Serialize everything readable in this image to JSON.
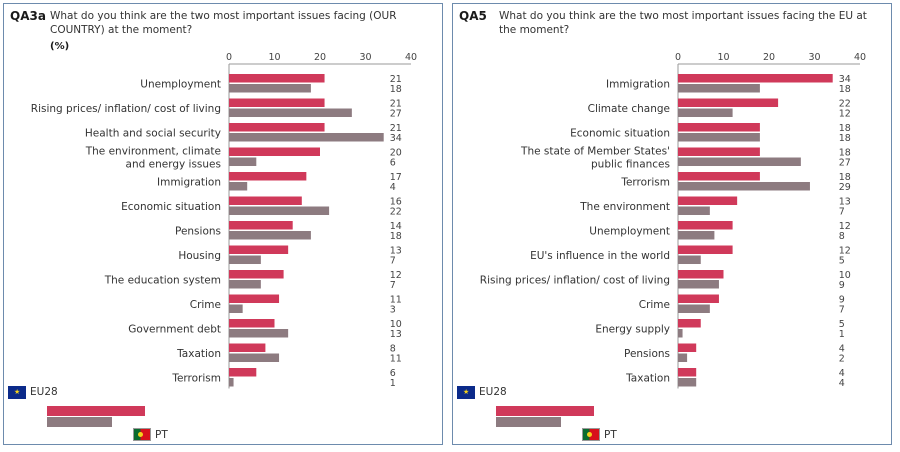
{
  "colors": {
    "eu28": "#d0395a",
    "pt": "#8d7b80",
    "axis": "#9a9a9a",
    "frame": "#6d8bad"
  },
  "legend": {
    "eu_label": "EU28",
    "pt_label": "PT",
    "eu_icon": "eu-flag-icon",
    "pt_icon": "portugal-flag-icon"
  },
  "chart_data": [
    {
      "type": "bar",
      "orientation": "horizontal",
      "code": "QA3a",
      "question": "What do you think are the two most important issues facing (OUR COUNTRY) at the moment?",
      "unit": "(%)",
      "xlim": [
        0,
        40
      ],
      "ticks": [
        "0",
        "10",
        "20",
        "30",
        "40"
      ],
      "categories": [
        [
          "Unemployment"
        ],
        [
          "Rising prices/ inflation/ cost of living"
        ],
        [
          "Health and social security"
        ],
        [
          "The environment, climate",
          "and energy issues"
        ],
        [
          "Immigration"
        ],
        [
          "Economic situation"
        ],
        [
          "Pensions"
        ],
        [
          "Housing"
        ],
        [
          "The education system"
        ],
        [
          "Crime"
        ],
        [
          "Government debt"
        ],
        [
          "Taxation"
        ],
        [
          "Terrorism"
        ]
      ],
      "series": [
        {
          "name": "EU28",
          "values": [
            21,
            21,
            21,
            20,
            17,
            16,
            14,
            13,
            12,
            11,
            10,
            8,
            6
          ]
        },
        {
          "name": "PT",
          "values": [
            18,
            27,
            34,
            6,
            4,
            22,
            18,
            7,
            7,
            3,
            13,
            11,
            1
          ]
        }
      ]
    },
    {
      "type": "bar",
      "orientation": "horizontal",
      "code": "QA5",
      "question": "What do you think are the two most important issues facing the EU at the moment?",
      "unit": "",
      "xlim": [
        0,
        40
      ],
      "ticks": [
        "0",
        "10",
        "20",
        "30",
        "40"
      ],
      "categories": [
        [
          "Immigration"
        ],
        [
          "Climate change"
        ],
        [
          "Economic situation"
        ],
        [
          "The state of Member States'",
          "public finances"
        ],
        [
          "Terrorism"
        ],
        [
          "The environment"
        ],
        [
          "Unemployment"
        ],
        [
          "EU's influence in the world"
        ],
        [
          "Rising prices/ inflation/ cost of living"
        ],
        [
          "Crime"
        ],
        [
          "Energy supply"
        ],
        [
          "Pensions"
        ],
        [
          "Taxation"
        ]
      ],
      "series": [
        {
          "name": "EU28",
          "values": [
            34,
            22,
            18,
            18,
            18,
            13,
            12,
            12,
            10,
            9,
            5,
            4,
            4
          ]
        },
        {
          "name": "PT",
          "values": [
            18,
            12,
            18,
            27,
            29,
            7,
            8,
            5,
            9,
            7,
            1,
            2,
            4
          ]
        }
      ]
    }
  ]
}
